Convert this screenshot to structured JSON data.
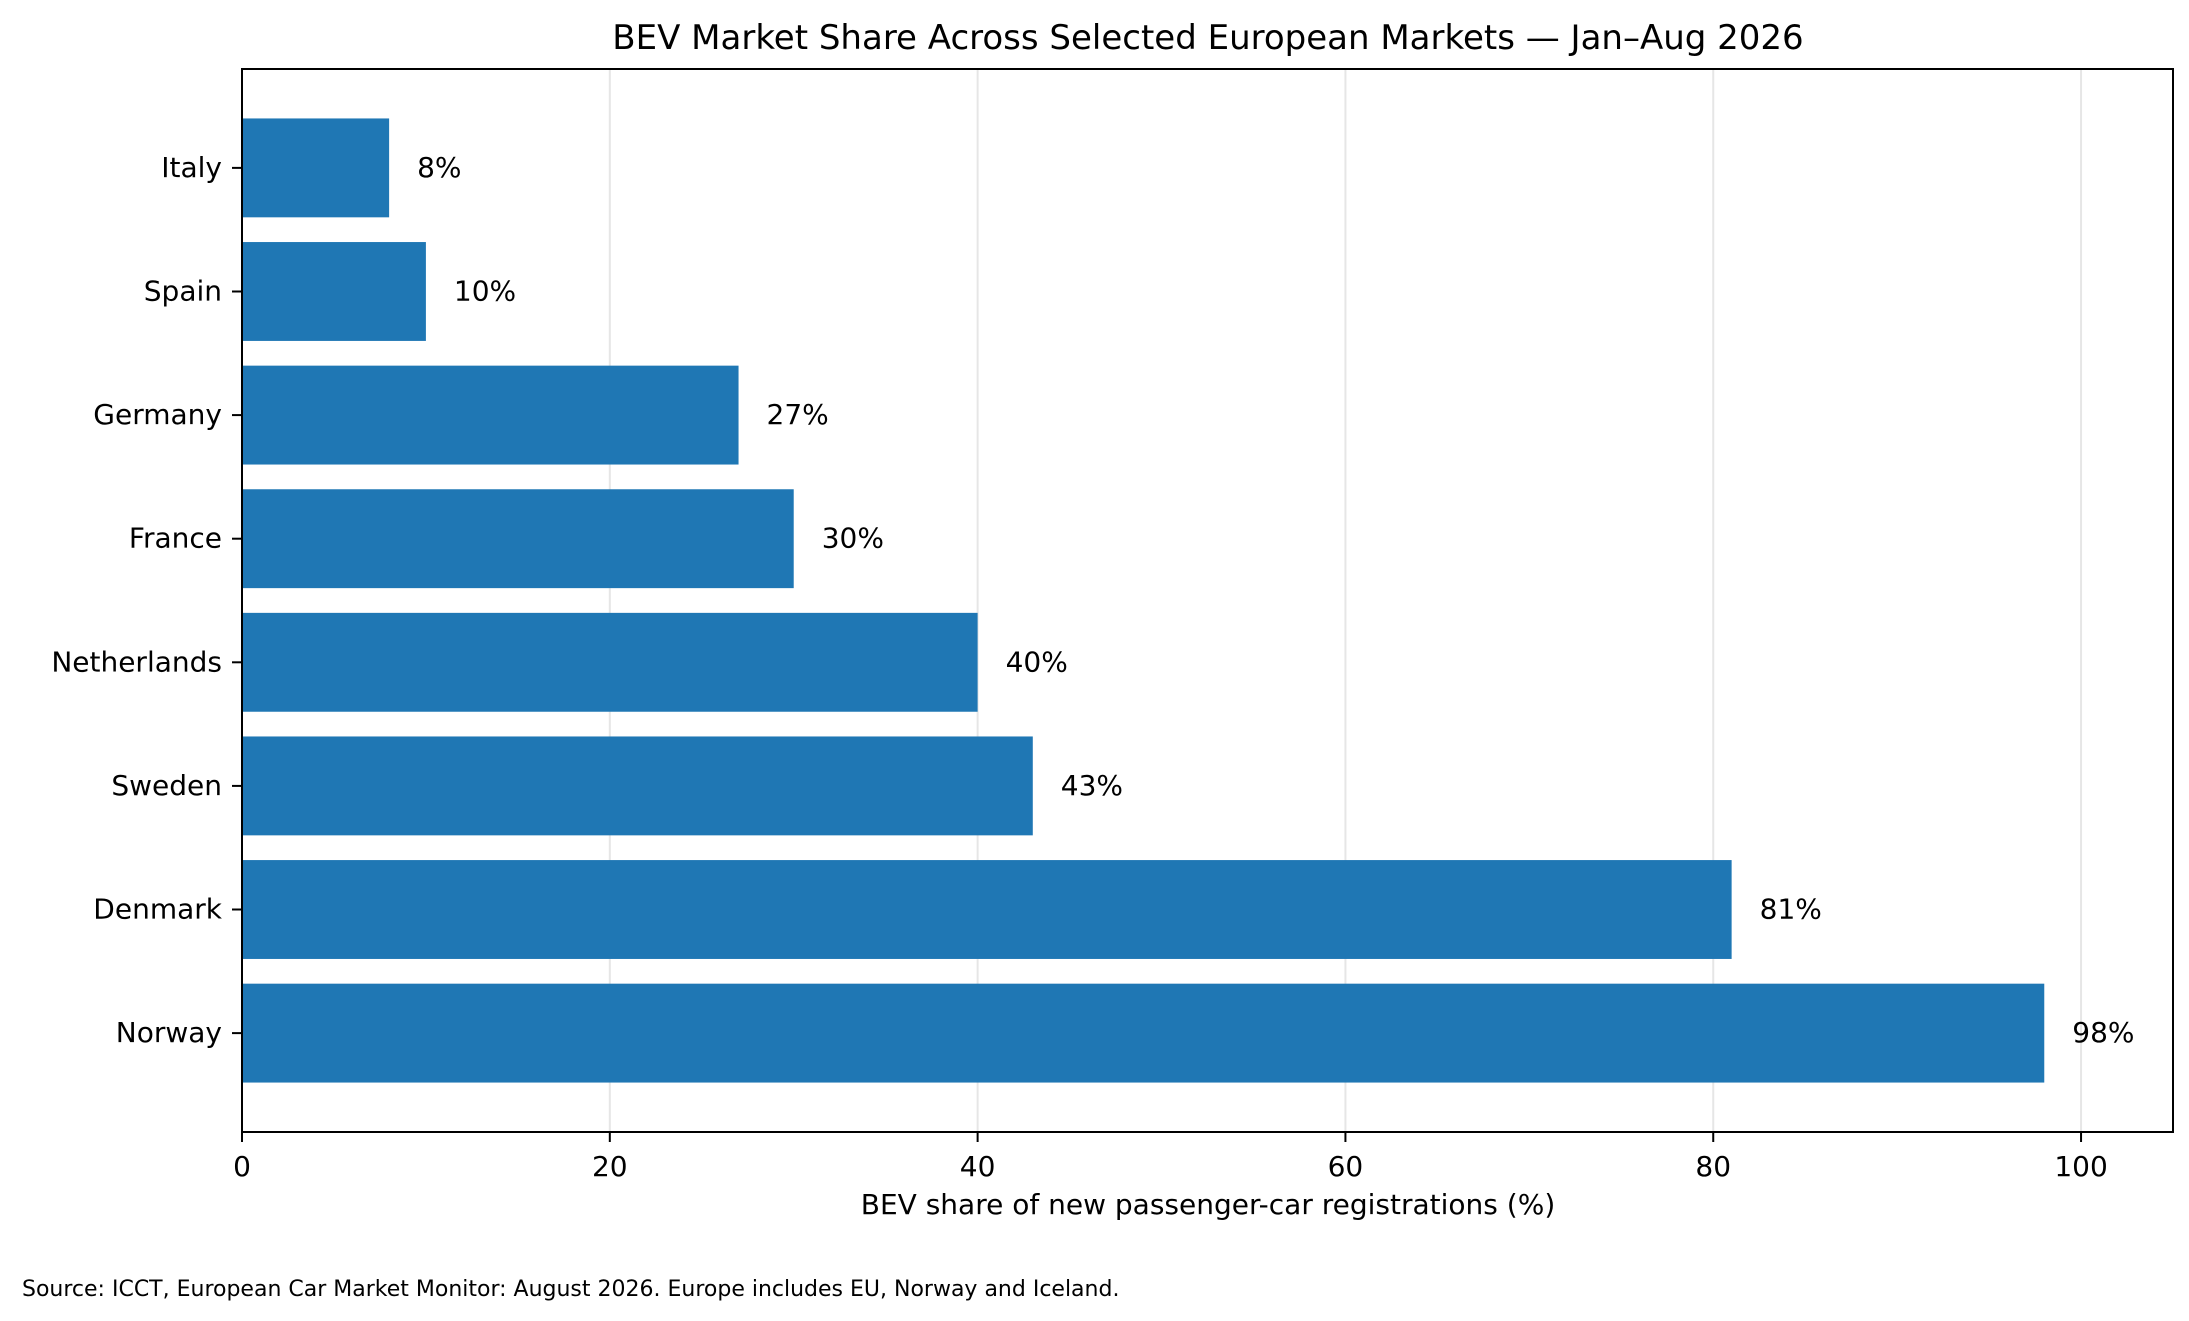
{
  "chart_data": {
    "type": "bar",
    "orientation": "horizontal",
    "title": "BEV Market Share Across Selected European Markets — Jan–Aug 2026",
    "xlabel": "BEV share of new passenger-car registrations (%)",
    "ylabel": "",
    "categories": [
      "Norway",
      "Denmark",
      "Sweden",
      "Netherlands",
      "France",
      "Germany",
      "Spain",
      "Italy"
    ],
    "values": [
      98,
      81,
      43,
      40,
      30,
      27,
      10,
      8
    ],
    "data_labels": [
      "98%",
      "81%",
      "43%",
      "40%",
      "30%",
      "27%",
      "10%",
      "8%"
    ],
    "xlim": [
      0,
      105
    ],
    "xticks": [
      0,
      20,
      40,
      60,
      80,
      100
    ],
    "xtick_labels": [
      "0",
      "20",
      "40",
      "60",
      "80",
      "100"
    ],
    "grid": "x-axis vertical gridlines",
    "bar_color": "#1f77b4",
    "source_note": "Source: ICCT, European Car Market Monitor: August 2026. Europe includes EU, Norway and Iceland."
  }
}
